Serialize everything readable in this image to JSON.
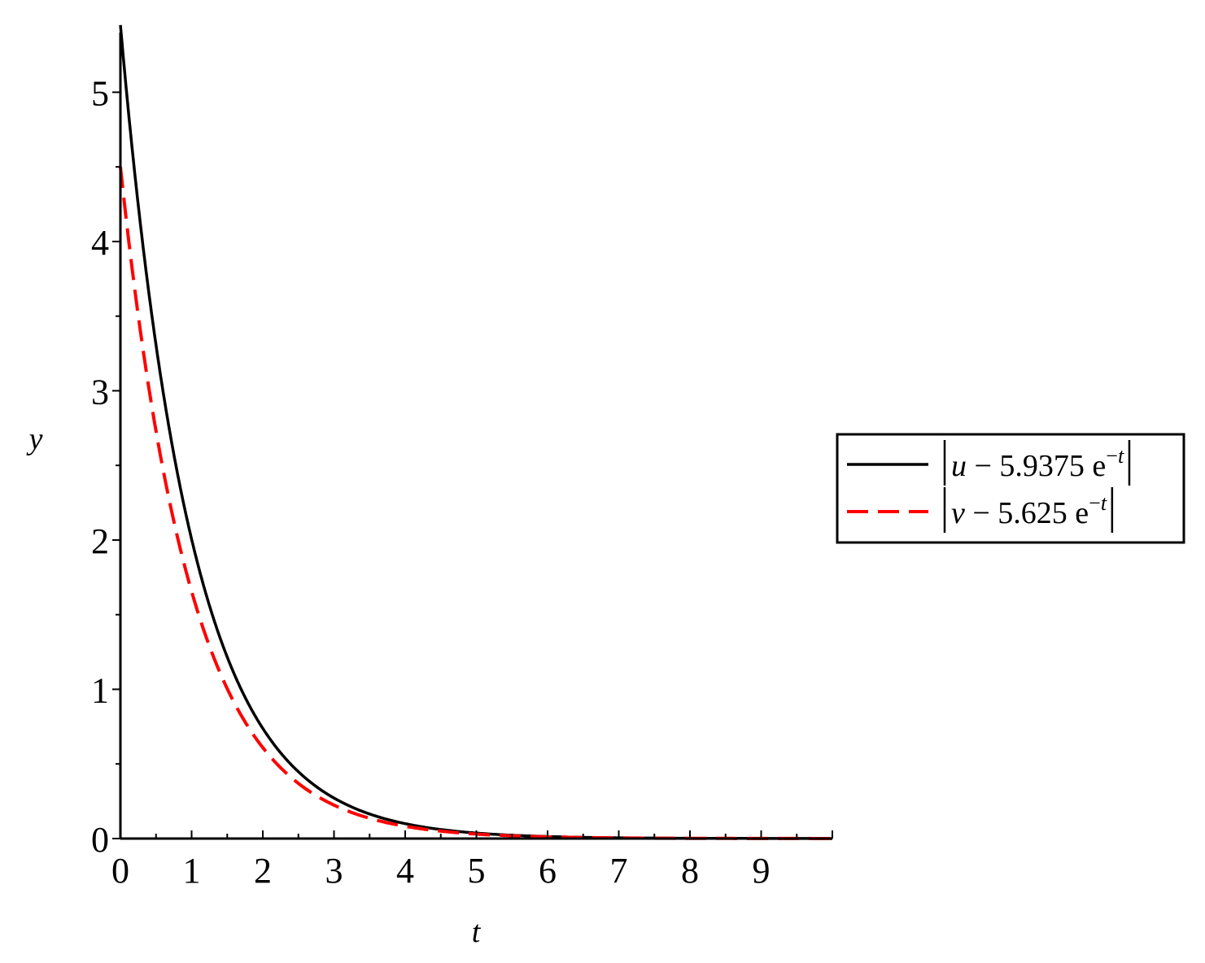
{
  "chart_data": {
    "type": "line",
    "xlabel": "t",
    "ylabel": "y",
    "xlim": [
      0,
      10
    ],
    "ylim": [
      0,
      5.4
    ],
    "x_ticks": [
      "0",
      "1",
      "2",
      "3",
      "4",
      "5",
      "6",
      "7",
      "8",
      "9"
    ],
    "y_ticks": [
      "0",
      "1",
      "2",
      "3",
      "4",
      "5"
    ],
    "legend_position": "right",
    "grid": false,
    "series": [
      {
        "name": "|u − 5.9375 e^−t|",
        "legend": {
          "var": "u",
          "coef": "5.9375"
        },
        "color": "#000000",
        "dash": "solid",
        "x": [
          0,
          0.25,
          0.5,
          0.75,
          1,
          1.5,
          2,
          2.5,
          3,
          3.5,
          4,
          5,
          6,
          7,
          8,
          9,
          10
        ],
        "y": [
          5.45,
          4.05,
          3.05,
          2.3,
          1.76,
          1.03,
          0.6,
          0.36,
          0.21,
          0.13,
          0.075,
          0.027,
          0.01,
          0.004,
          0.0015,
          0.0005,
          0.0002
        ]
      },
      {
        "name": "|v − 5.625 e^−t|",
        "legend": {
          "var": "v",
          "coef": "5.625"
        },
        "color": "#ff0000",
        "dash": "dashed",
        "x": [
          0,
          0.25,
          0.5,
          0.75,
          1,
          1.5,
          2,
          2.5,
          3,
          3.5,
          4,
          5,
          6,
          7,
          8,
          9,
          10
        ],
        "y": [
          4.5,
          3.55,
          2.75,
          2.1,
          1.6,
          0.92,
          0.54,
          0.31,
          0.18,
          0.11,
          0.065,
          0.024,
          0.009,
          0.0033,
          0.0012,
          0.0004,
          0.00015
        ]
      }
    ]
  }
}
